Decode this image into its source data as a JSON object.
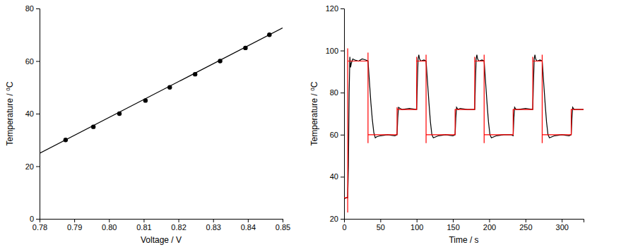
{
  "chart_data": [
    {
      "type": "scatter",
      "x_label": "Voltage / V",
      "y_label": "Temperature / ⁰C",
      "xlim": [
        0.78,
        0.85
      ],
      "ylim": [
        0,
        80
      ],
      "xticks": [
        0.78,
        0.79,
        {
          "value": 0.8,
          "label": "0.80"
        },
        0.81,
        0.82,
        0.83,
        0.84,
        0.85
      ],
      "yticks": [
        0,
        20,
        40,
        60,
        80
      ],
      "series": [
        {
          "type": "scatter",
          "color": "#000000",
          "marker": "circle",
          "x": [
            0.7875,
            0.7955,
            0.803,
            0.8105,
            0.8175,
            0.8248,
            0.832,
            0.8393,
            0.8462
          ],
          "values": [
            30,
            35,
            40,
            45,
            50,
            55,
            60,
            65,
            70
          ]
        },
        {
          "type": "line",
          "color": "#000000",
          "x": [
            0.78,
            0.85
          ],
          "values": [
            24.9,
            72.6
          ]
        }
      ]
    },
    {
      "type": "line",
      "x_label": "Time / s",
      "y_label": "Temperature / ⁰C",
      "xlim": [
        0,
        330
      ],
      "ylim": [
        20,
        120
      ],
      "xticks": [
        0,
        50,
        100,
        150,
        200,
        250,
        300
      ],
      "yticks": [
        20,
        40,
        60,
        80,
        100,
        120
      ],
      "series": [
        {
          "type": "line",
          "color": "#000000",
          "x": [
            0,
            3,
            5,
            6,
            7,
            8,
            9,
            10,
            12,
            15,
            20,
            25,
            30,
            33,
            35,
            37,
            39,
            41,
            43,
            45,
            50,
            60,
            70,
            73,
            74,
            75,
            77,
            80,
            90,
            100,
            101,
            102,
            103,
            104,
            106,
            110,
            113,
            115,
            117,
            119,
            121,
            123,
            130,
            140,
            150,
            153,
            154,
            155,
            157,
            160,
            170,
            180,
            181,
            182,
            183,
            184,
            186,
            190,
            193,
            195,
            197,
            199,
            201,
            203,
            210,
            220,
            230,
            233,
            234,
            235,
            237,
            240,
            250,
            260,
            261,
            262,
            263,
            264,
            266,
            270,
            273,
            275,
            277,
            279,
            281,
            283,
            290,
            300,
            310,
            313,
            314,
            315,
            317,
            320,
            330
          ],
          "values": [
            29.5,
            30,
            30,
            45,
            80,
            97,
            92,
            94,
            96,
            95.5,
            95,
            96,
            95.5,
            95,
            85,
            75,
            67,
            61,
            58.5,
            59,
            59.5,
            60,
            59.5,
            60,
            68,
            73,
            72.5,
            72,
            72.5,
            72,
            85,
            96,
            98,
            96,
            95,
            95.5,
            95,
            85,
            75,
            66,
            60,
            58.5,
            59.5,
            60,
            59.5,
            60,
            68,
            73,
            72,
            72.5,
            72,
            72,
            85,
            96,
            98,
            96,
            95,
            95.5,
            95,
            85,
            75,
            66,
            60,
            58.5,
            59.5,
            60,
            60,
            59.5,
            68,
            73,
            72,
            72,
            72.5,
            72,
            85,
            96,
            98,
            96,
            95,
            95.5,
            95,
            85,
            75,
            66,
            60,
            58.5,
            59.5,
            60,
            59.5,
            60,
            68,
            73,
            72,
            72,
            72
          ]
        },
        {
          "type": "line",
          "color": "#ff0000",
          "x": [
            0,
            5,
            5,
            5,
            5,
            33,
            33,
            33,
            33,
            73,
            73,
            73,
            100,
            100,
            100,
            113,
            113,
            113,
            113,
            153,
            153,
            180,
            180,
            180,
            193,
            193,
            193,
            193,
            233,
            233,
            260,
            260,
            260,
            273,
            273,
            273,
            273,
            313,
            313,
            330
          ],
          "values": [
            30,
            30,
            23,
            101,
            95,
            95,
            99,
            56,
            60,
            60,
            73,
            72,
            72,
            97,
            95,
            95,
            98,
            56,
            60,
            60,
            72,
            72,
            97,
            95,
            95,
            98,
            56,
            60,
            60,
            72,
            72,
            97,
            95,
            95,
            98,
            56,
            60,
            60,
            72,
            72
          ]
        }
      ]
    }
  ]
}
